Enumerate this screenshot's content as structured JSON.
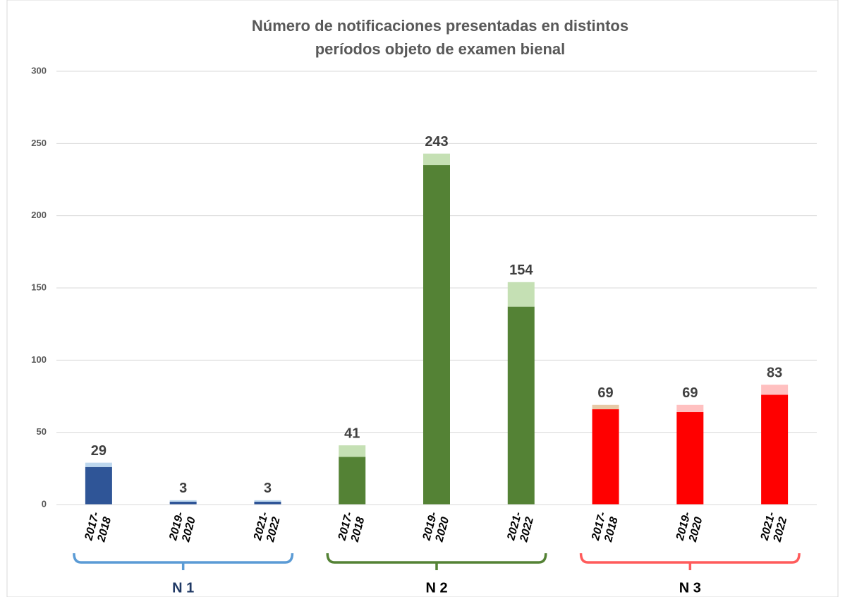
{
  "chart_data": {
    "type": "stacked-bar",
    "title": [
      "Número de notificaciones presentadas en distintos",
      "períodos objeto de examen bienal"
    ],
    "categories": [
      [
        "2017-",
        "2018"
      ],
      [
        "2019-",
        "2020"
      ],
      [
        "2021-",
        "2022"
      ],
      [
        "2017-",
        "2018"
      ],
      [
        "2019-",
        "2020"
      ],
      [
        "2021-",
        "2022"
      ],
      [
        "2017-",
        "2018"
      ],
      [
        "2019-",
        "2020"
      ],
      [
        "2021-",
        "2022"
      ]
    ],
    "groups": [
      {
        "label": "N 1",
        "color": "#5b9bd5",
        "size": 3
      },
      {
        "label": "N 2",
        "color": "#548235",
        "size": 3
      },
      {
        "label": "N 3",
        "color": "#ff5b5b",
        "size": 3
      }
    ],
    "series": [
      {
        "colors": [
          "#2f5597",
          "#2f5597",
          "#2f5597",
          "#548235",
          "#548235",
          "#548235",
          "#ff0000",
          "#ff0000",
          "#ff0000"
        ],
        "values": [
          26,
          2,
          2,
          33,
          235,
          137,
          66,
          64,
          76
        ]
      },
      {
        "colors": [
          "#bdd7ee",
          "#bdd7ee",
          "#bdd7ee",
          "#c5e0b4",
          "#c5e0b4",
          "#c5e0b4",
          "#e7c9a6",
          "#ffc0c0",
          "#ffc0c0"
        ],
        "values": [
          3,
          1,
          1,
          8,
          8,
          17,
          3,
          5,
          7
        ]
      }
    ],
    "totals": [
      29,
      3,
      3,
      41,
      243,
      154,
      69,
      69,
      83
    ],
    "ylim": [
      0,
      300
    ],
    "yticks": [
      0,
      50,
      100,
      150,
      200,
      250,
      300
    ],
    "grid": true
  }
}
